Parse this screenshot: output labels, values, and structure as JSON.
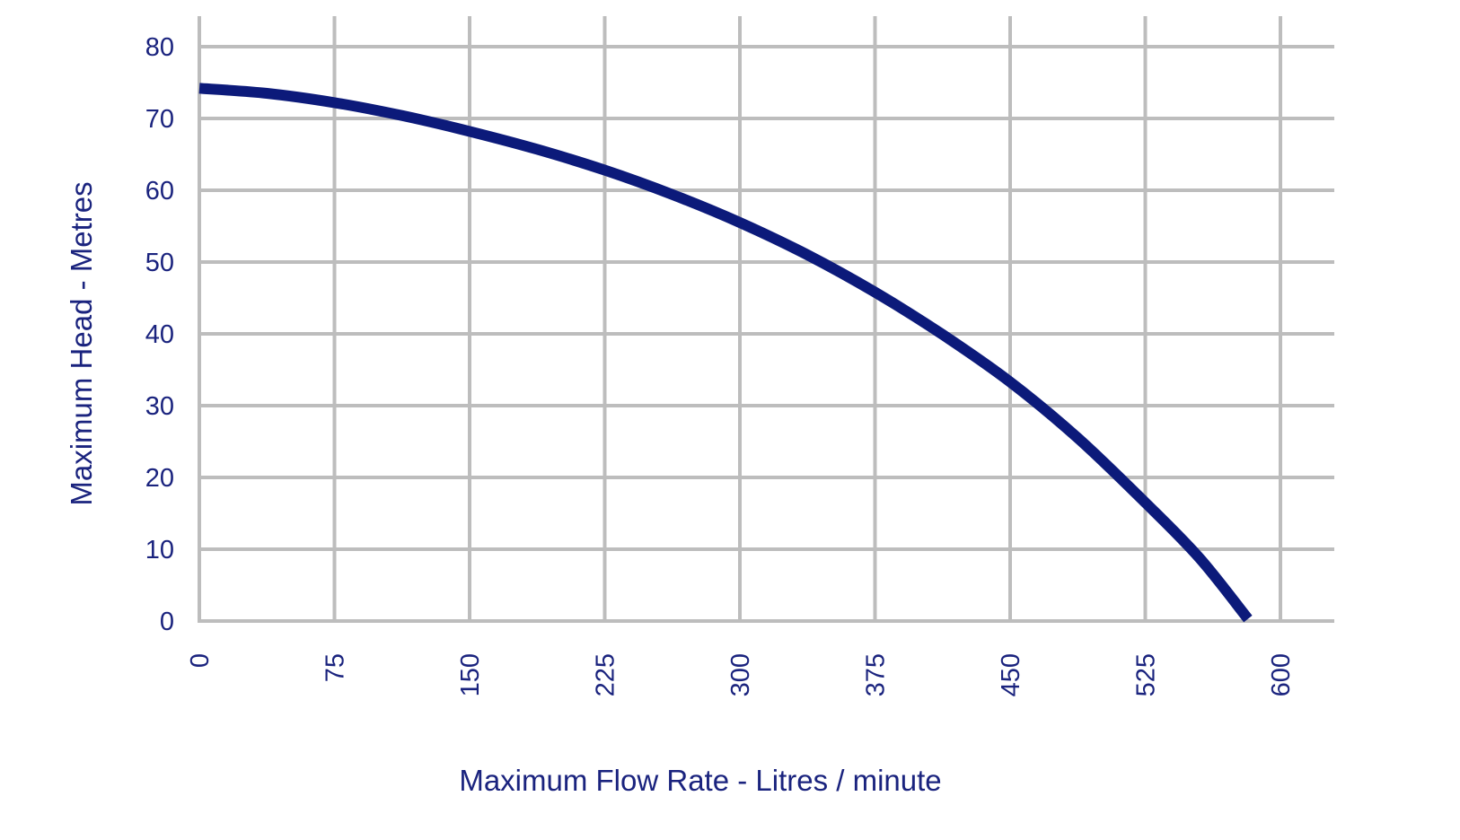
{
  "chart_data": {
    "type": "line",
    "title": "",
    "xlabel": "Maximum Flow Rate - Litres / minute",
    "ylabel": "Maximum Head - Metres",
    "xlim": [
      0,
      600
    ],
    "ylim": [
      0,
      80
    ],
    "x_ticks": [
      "0",
      "75",
      "150",
      "225",
      "300",
      "375",
      "450",
      "525",
      "600"
    ],
    "y_ticks": [
      "0",
      "10",
      "20",
      "30",
      "40",
      "50",
      "60",
      "70",
      "80"
    ],
    "grid": true,
    "legend": "none",
    "series": [
      {
        "color": "#0c1a7a",
        "x": [
          0,
          37.5,
          75,
          112.5,
          150,
          187.5,
          225,
          262.5,
          300,
          337.5,
          375,
          412.5,
          450,
          487.5,
          525,
          555,
          582
        ],
        "y": [
          74.2,
          73.5,
          72.2,
          70.4,
          68.2,
          65.7,
          62.8,
          59.4,
          55.5,
          51.0,
          45.8,
          39.9,
          33.3,
          25.5,
          16.5,
          8.8,
          0.3
        ]
      }
    ]
  }
}
